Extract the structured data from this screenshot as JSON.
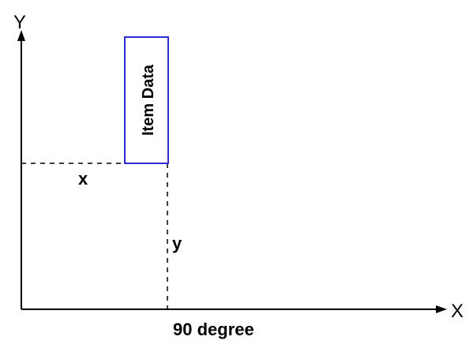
{
  "diagram": {
    "y_axis_label": "Y",
    "x_axis_label": "X",
    "x_offset_label": "x",
    "y_offset_label": "y",
    "box_text": "Item Data",
    "caption": "90 degree",
    "colors": {
      "axis": "#000000",
      "guide": "#000000",
      "box_border": "#2b2bd6",
      "background": "#ffffff"
    }
  }
}
